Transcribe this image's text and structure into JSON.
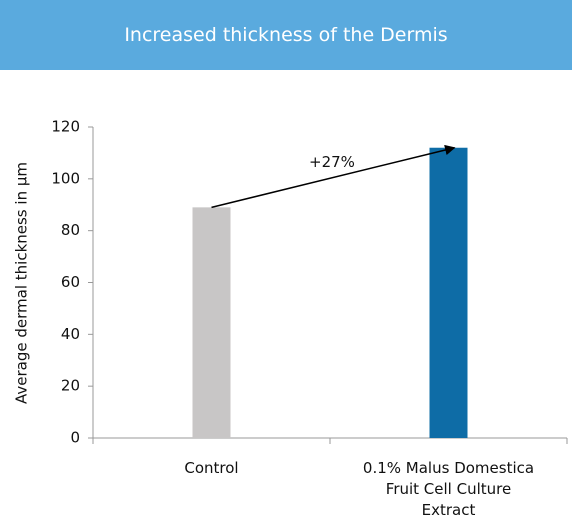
{
  "chart_data": {
    "type": "bar",
    "title": "Increased thickness of the Dermis",
    "y_label": "Average dermal thickness in µm",
    "categories": [
      "Control",
      "0.1% Malus Domestica Fruit Cell Culture Extract"
    ],
    "values": [
      89,
      112
    ],
    "colors": [
      "#c8c6c6",
      "#0e6ca6"
    ],
    "annotation": "+27%",
    "ylim": [
      0,
      120
    ],
    "yticks": [
      0,
      20,
      40,
      60,
      80,
      100,
      120
    ],
    "grid": false
  }
}
